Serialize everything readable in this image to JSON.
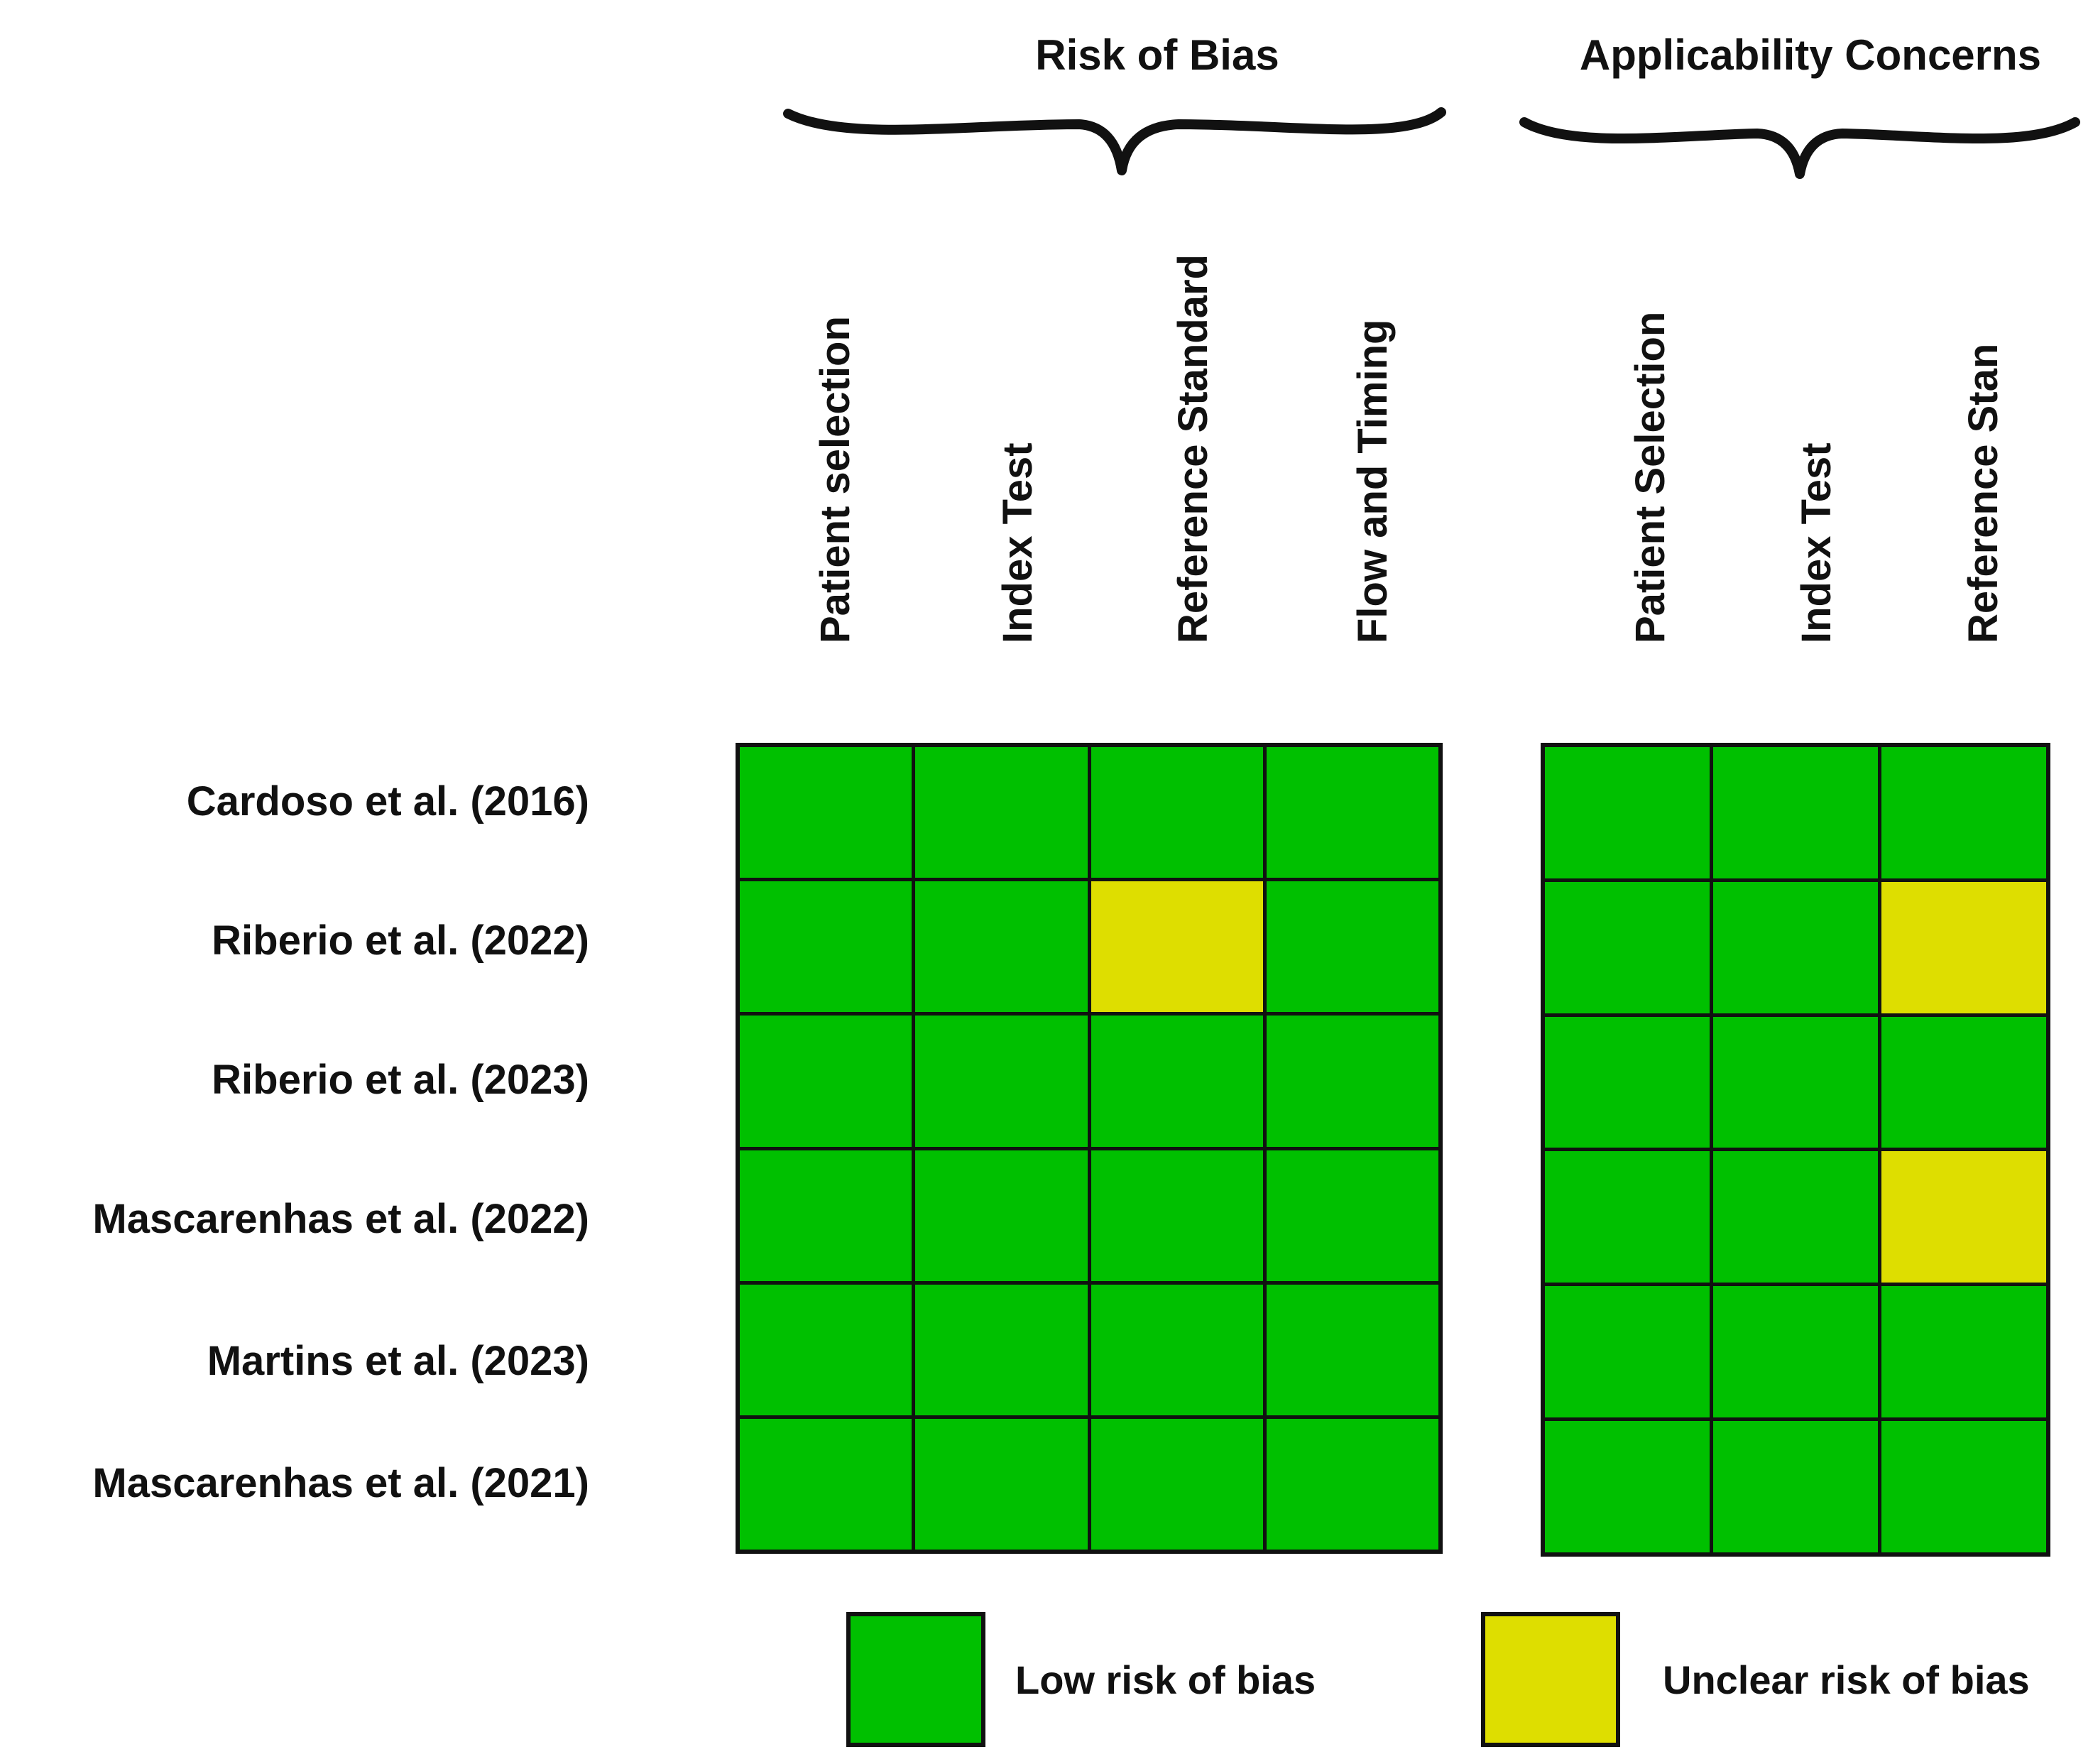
{
  "chart_data": {
    "type": "heatmap",
    "groups": [
      {
        "title": "Risk of Bias",
        "columns": [
          "Patient selection",
          "Index Test",
          "Reference Standard",
          "Flow and Timing"
        ]
      },
      {
        "title": "Applicability Concerns",
        "columns": [
          "Patient Selection",
          "Index Test",
          "Reference Stan"
        ]
      }
    ],
    "rows": [
      "Cardoso et al. (2016)",
      "Riberio et al. (2022)",
      "Riberio et al. (2023)",
      "Mascarenhas et al. (2022)",
      "Martins et al. (2023)",
      "Mascarenhas et al. (2021)"
    ],
    "values": {
      "risk_of_bias": [
        [
          "low",
          "low",
          "low",
          "low"
        ],
        [
          "low",
          "low",
          "unclear",
          "low"
        ],
        [
          "low",
          "low",
          "low",
          "low"
        ],
        [
          "low",
          "low",
          "low",
          "low"
        ],
        [
          "low",
          "low",
          "low",
          "low"
        ],
        [
          "low",
          "low",
          "low",
          "low"
        ]
      ],
      "applicability_concerns": [
        [
          "low",
          "low",
          "low"
        ],
        [
          "low",
          "low",
          "unclear"
        ],
        [
          "low",
          "low",
          "low"
        ],
        [
          "low",
          "low",
          "unclear"
        ],
        [
          "low",
          "low",
          "low"
        ],
        [
          "low",
          "low",
          "low"
        ]
      ]
    },
    "legend": [
      {
        "key": "low",
        "label": "Low risk of bias",
        "color": "#00c000"
      },
      {
        "key": "unclear",
        "label": "Unclear risk of bias",
        "color": "#dede00"
      }
    ]
  }
}
